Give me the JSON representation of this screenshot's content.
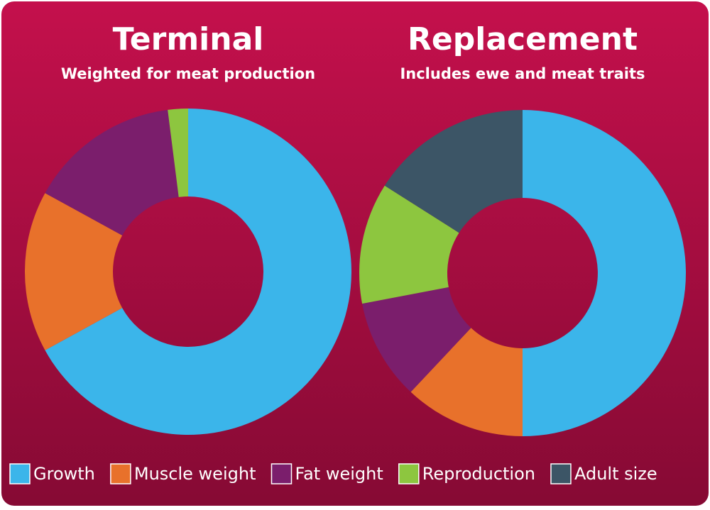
{
  "categories": [
    "Growth",
    "Muscle weight",
    "Fat weight",
    "Reproduction",
    "Adult size"
  ],
  "colors": [
    "#3bb5ea",
    "#e8712b",
    "#7b1e6c",
    "#8dc63f",
    "#3c5566"
  ],
  "chart_data": [
    {
      "type": "donut",
      "title": "Terminal",
      "subtitle": "Weighted for meat production",
      "values": [
        67,
        16,
        15,
        2
      ]
    },
    {
      "type": "donut",
      "title": "Replacement",
      "subtitle": "Includes ewe and meat traits",
      "values": [
        50,
        12,
        10,
        12,
        16
      ]
    }
  ]
}
